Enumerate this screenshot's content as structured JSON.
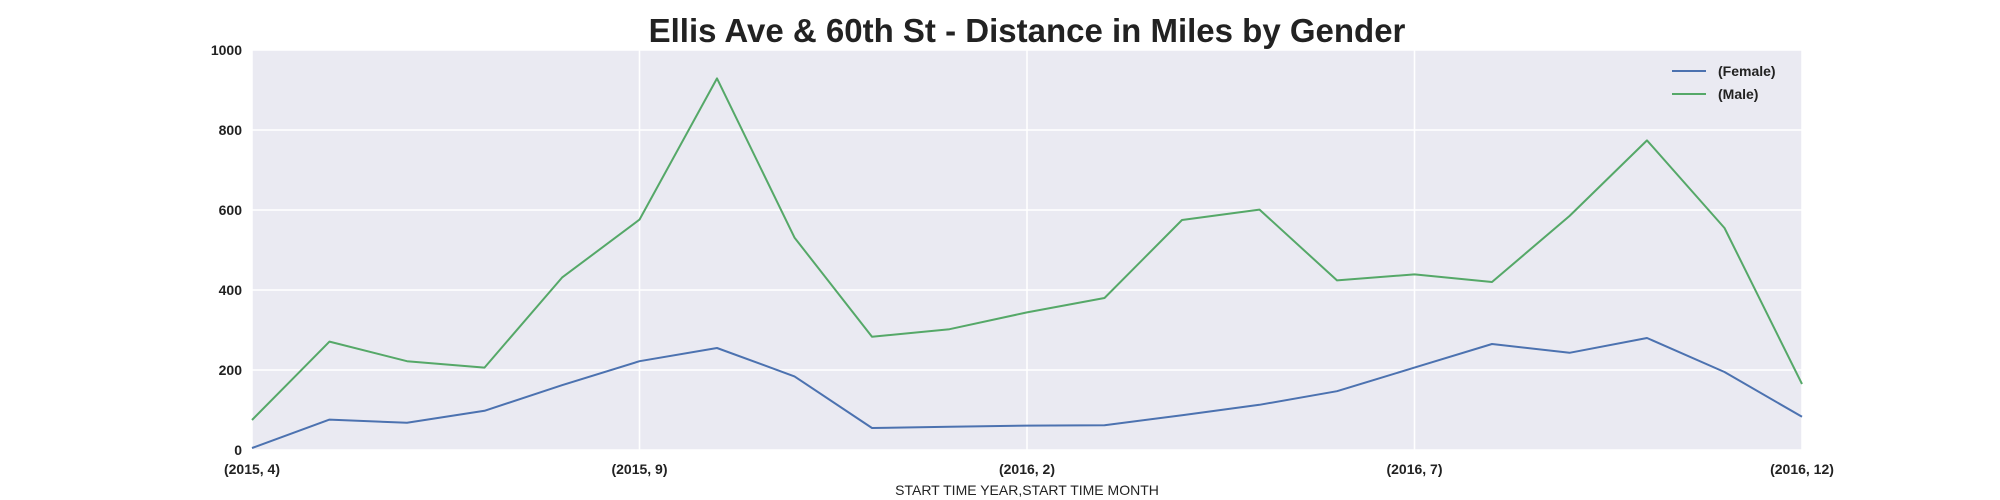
{
  "chart_data": {
    "type": "line",
    "title": "Ellis Ave & 60th St - Distance in Miles by Gender",
    "xlabel": "START TIME YEAR,START TIME MONTH",
    "ylabel": "",
    "ylim": [
      0,
      1000
    ],
    "yticks": [
      0,
      200,
      400,
      600,
      800,
      1000
    ],
    "grid": true,
    "legend_position": "top-right",
    "x": [
      "(2015, 4)",
      "(2015, 5)",
      "(2015, 6)",
      "(2015, 7)",
      "(2015, 8)",
      "(2015, 9)",
      "(2015, 10)",
      "(2015, 11)",
      "(2015, 12)",
      "(2016, 1)",
      "(2016, 2)",
      "(2016, 3)",
      "(2016, 4)",
      "(2016, 5)",
      "(2016, 6)",
      "(2016, 7)",
      "(2016, 8)",
      "(2016, 9)",
      "(2016, 10)",
      "(2016, 11)",
      "(2016, 12)"
    ],
    "xtick_labels": [
      "(2015, 4)",
      "(2015, 9)",
      "(2016, 2)",
      "(2016, 7)",
      "(2016, 12)"
    ],
    "series": [
      {
        "name": "(Female)",
        "color": "#4c72b0",
        "values": [
          5,
          76,
          68,
          98,
          162,
          222,
          255,
          184,
          55,
          58,
          61,
          62,
          87,
          113,
          147,
          206,
          265,
          243,
          280,
          195,
          83
        ]
      },
      {
        "name": "(Male)",
        "color": "#55a868",
        "values": [
          75,
          271,
          222,
          206,
          431,
          576,
          929,
          531,
          283,
          302,
          344,
          380,
          575,
          601,
          424,
          439,
          420,
          585,
          774,
          555,
          165
        ]
      }
    ],
    "colors": {
      "plot_background": "#eaeaf2",
      "grid": "#ffffff"
    }
  }
}
